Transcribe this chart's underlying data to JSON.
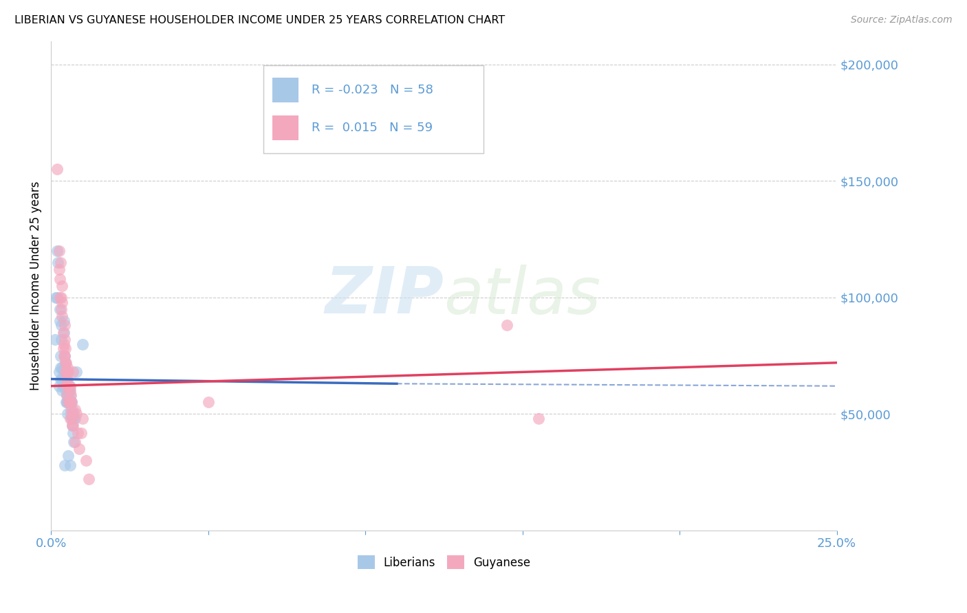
{
  "title": "LIBERIAN VS GUYANESE HOUSEHOLDER INCOME UNDER 25 YEARS CORRELATION CHART",
  "source": "Source: ZipAtlas.com",
  "accent_color": "#5b9bd5",
  "ylabel": "Householder Income Under 25 years",
  "xlim": [
    0.0,
    0.25
  ],
  "ylim": [
    0,
    210000
  ],
  "xticks": [
    0.0,
    0.05,
    0.1,
    0.15,
    0.2,
    0.25
  ],
  "ytick_values": [
    50000,
    100000,
    150000,
    200000
  ],
  "watermark_zip": "ZIP",
  "watermark_atlas": "atlas",
  "legend_R_liberian": "-0.023",
  "legend_N_liberian": "58",
  "legend_R_guyanese": "0.015",
  "legend_N_guyanese": "59",
  "liberian_color": "#a8c8e8",
  "guyanese_color": "#f4a8be",
  "liberian_line_color": "#3a6bbf",
  "guyanese_line_color": "#e04060",
  "liberian_scatter": [
    [
      0.0012,
      82000
    ],
    [
      0.0015,
      100000
    ],
    [
      0.0018,
      100000
    ],
    [
      0.002,
      120000
    ],
    [
      0.0022,
      115000
    ],
    [
      0.0025,
      68000
    ],
    [
      0.0025,
      62000
    ],
    [
      0.0028,
      95000
    ],
    [
      0.0028,
      90000
    ],
    [
      0.003,
      75000
    ],
    [
      0.003,
      70000
    ],
    [
      0.003,
      65000
    ],
    [
      0.0032,
      88000
    ],
    [
      0.0032,
      82000
    ],
    [
      0.0035,
      70000
    ],
    [
      0.0035,
      65000
    ],
    [
      0.0035,
      60000
    ],
    [
      0.0038,
      68000
    ],
    [
      0.0038,
      62000
    ],
    [
      0.004,
      90000
    ],
    [
      0.004,
      85000
    ],
    [
      0.0042,
      75000
    ],
    [
      0.0042,
      70000
    ],
    [
      0.0042,
      65000
    ],
    [
      0.0045,
      72000
    ],
    [
      0.0045,
      68000
    ],
    [
      0.0045,
      62000
    ],
    [
      0.0048,
      65000
    ],
    [
      0.0048,
      60000
    ],
    [
      0.0048,
      55000
    ],
    [
      0.005,
      62000
    ],
    [
      0.005,
      58000
    ],
    [
      0.005,
      55000
    ],
    [
      0.0052,
      60000
    ],
    [
      0.0052,
      55000
    ],
    [
      0.0052,
      50000
    ],
    [
      0.0055,
      58000
    ],
    [
      0.0055,
      55000
    ],
    [
      0.0058,
      60000
    ],
    [
      0.0058,
      55000
    ],
    [
      0.006,
      62000
    ],
    [
      0.006,
      58000
    ],
    [
      0.0062,
      55000
    ],
    [
      0.0062,
      50000
    ],
    [
      0.0065,
      55000
    ],
    [
      0.0065,
      48000
    ],
    [
      0.0068,
      52000
    ],
    [
      0.0068,
      45000
    ],
    [
      0.007,
      50000
    ],
    [
      0.007,
      42000
    ],
    [
      0.0072,
      48000
    ],
    [
      0.0072,
      38000
    ],
    [
      0.0075,
      48000
    ],
    [
      0.008,
      68000
    ],
    [
      0.01,
      80000
    ],
    [
      0.0042,
      28000
    ],
    [
      0.0055,
      32000
    ],
    [
      0.006,
      28000
    ]
  ],
  "guyanese_scatter": [
    [
      0.0018,
      155000
    ],
    [
      0.0025,
      120000
    ],
    [
      0.0026,
      112000
    ],
    [
      0.0028,
      108000
    ],
    [
      0.0028,
      100000
    ],
    [
      0.003,
      115000
    ],
    [
      0.0032,
      100000
    ],
    [
      0.0032,
      95000
    ],
    [
      0.0035,
      105000
    ],
    [
      0.0035,
      98000
    ],
    [
      0.0035,
      92000
    ],
    [
      0.0038,
      85000
    ],
    [
      0.0038,
      78000
    ],
    [
      0.004,
      80000
    ],
    [
      0.004,
      75000
    ],
    [
      0.0042,
      88000
    ],
    [
      0.0042,
      82000
    ],
    [
      0.0042,
      75000
    ],
    [
      0.0045,
      78000
    ],
    [
      0.0045,
      72000
    ],
    [
      0.0045,
      68000
    ],
    [
      0.0048,
      72000
    ],
    [
      0.0048,
      65000
    ],
    [
      0.005,
      68000
    ],
    [
      0.005,
      62000
    ],
    [
      0.005,
      58000
    ],
    [
      0.0052,
      70000
    ],
    [
      0.0052,
      65000
    ],
    [
      0.0055,
      68000
    ],
    [
      0.0055,
      62000
    ],
    [
      0.0055,
      55000
    ],
    [
      0.0058,
      62000
    ],
    [
      0.0058,
      55000
    ],
    [
      0.006,
      60000
    ],
    [
      0.006,
      55000
    ],
    [
      0.006,
      48000
    ],
    [
      0.0062,
      58000
    ],
    [
      0.0062,
      52000
    ],
    [
      0.0065,
      55000
    ],
    [
      0.0065,
      48000
    ],
    [
      0.0068,
      50000
    ],
    [
      0.0068,
      45000
    ],
    [
      0.007,
      68000
    ],
    [
      0.007,
      45000
    ],
    [
      0.0075,
      52000
    ],
    [
      0.0075,
      38000
    ],
    [
      0.008,
      50000
    ],
    [
      0.0085,
      42000
    ],
    [
      0.009,
      35000
    ],
    [
      0.0095,
      42000
    ],
    [
      0.01,
      48000
    ],
    [
      0.011,
      30000
    ],
    [
      0.012,
      22000
    ],
    [
      0.05,
      55000
    ],
    [
      0.145,
      88000
    ],
    [
      0.155,
      48000
    ]
  ],
  "lib_line_x": [
    0.0,
    0.11
  ],
  "lib_line_y": [
    65000,
    63000
  ],
  "guy_line_x": [
    0.0,
    0.25
  ],
  "guy_line_y": [
    62000,
    72000
  ],
  "dash_line_x": [
    0.11,
    0.25
  ],
  "dash_line_y": [
    63000,
    62000
  ]
}
